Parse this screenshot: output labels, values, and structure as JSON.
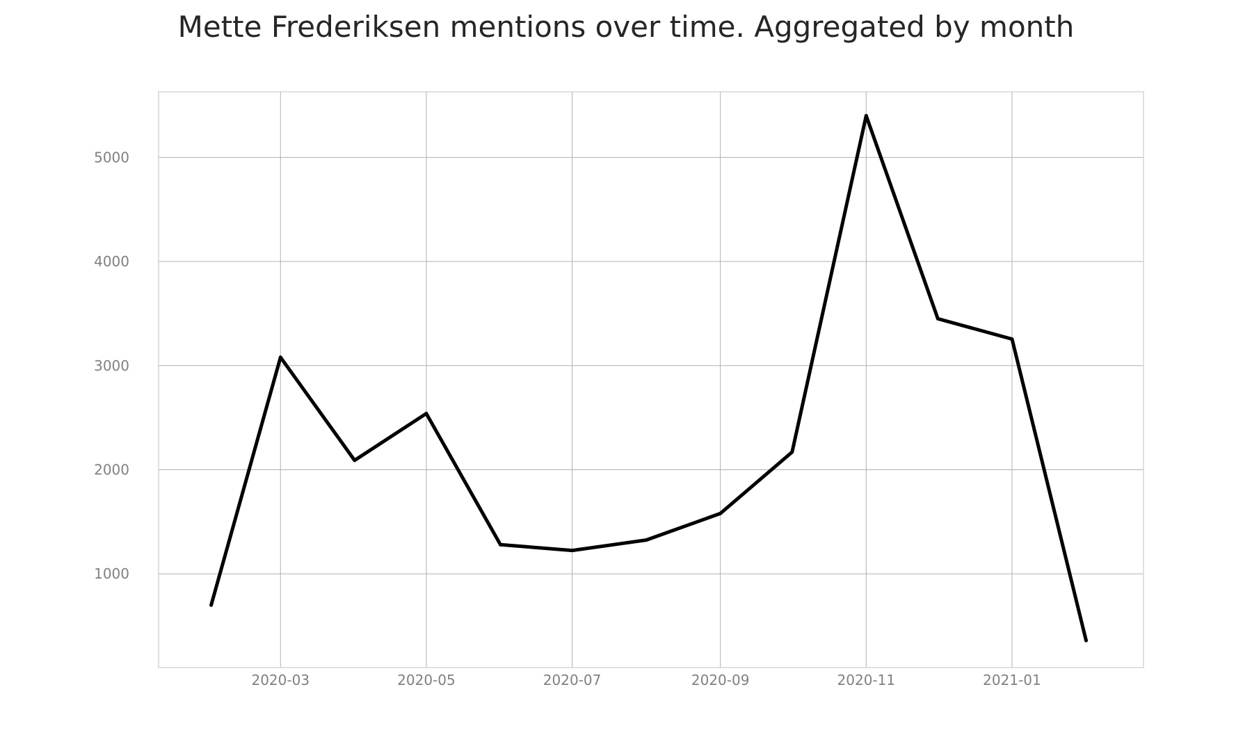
{
  "chart_data": {
    "type": "line",
    "title": "Mette Frederiksen mentions over time. Aggregated by month",
    "xlabel": "",
    "ylabel": "",
    "x": [
      "2020-02-01",
      "2020-03-01",
      "2020-04-01",
      "2020-05-01",
      "2020-06-01",
      "2020-07-01",
      "2020-08-01",
      "2020-09-01",
      "2020-10-01",
      "2020-11-01",
      "2020-12-01",
      "2021-01-01",
      "2021-02-01"
    ],
    "series": [
      {
        "values": [
          700,
          3080,
          2090,
          2540,
          1280,
          1225,
          1325,
          1580,
          2170,
          5400,
          3450,
          3255,
          360
        ],
        "color": "#000000"
      }
    ],
    "x_ticks": [
      "2020-03",
      "2020-05",
      "2020-07",
      "2020-09",
      "2020-11",
      "2021-01"
    ],
    "x_tick_values": [
      "2020-03-01",
      "2020-05-01",
      "2020-07-01",
      "2020-09-01",
      "2020-11-01",
      "2021-01-01"
    ],
    "y_ticks": [
      1000,
      2000,
      3000,
      4000,
      5000
    ],
    "xlim": [
      "2020-01-10",
      "2021-02-25"
    ],
    "ylim": [
      100,
      5630
    ],
    "grid": true,
    "legend": "none"
  }
}
